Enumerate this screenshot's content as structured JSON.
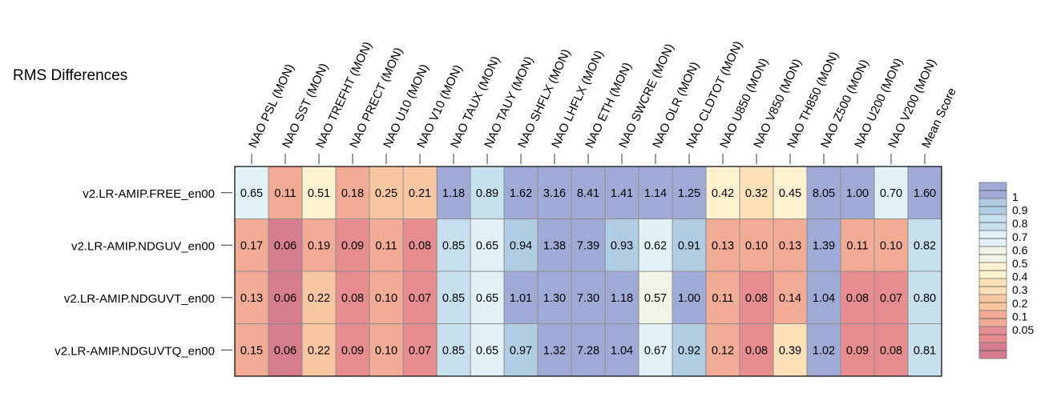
{
  "chart_data": {
    "type": "heatmap",
    "title": "RMS Differences",
    "columns": [
      "NAO PSL (MON)",
      "NAO SST (MON)",
      "NAO TREFHT (MON)",
      "NAO PRECT (MON)",
      "NAO U10 (MON)",
      "NAO V10 (MON)",
      "NAO TAUX (MON)",
      "NAO TAUY (MON)",
      "NAO SHFLX (MON)",
      "NAO LHFLX (MON)",
      "NAO ETH (MON)",
      "NAO SWCRE (MON)",
      "NAO OLR (MON)",
      "NAO CLDTOT (MON)",
      "NAO U850 (MON)",
      "NAO V850 (MON)",
      "NAO TH850 (MON)",
      "NAO Z500 (MON)",
      "NAO U200 (MON)",
      "NAO V200 (MON)",
      "Mean Score"
    ],
    "rows": [
      {
        "name": "v2.LR-AMIP.FREE_en00",
        "values": [
          "0.65",
          "0.11",
          "0.51",
          "0.18",
          "0.25",
          "0.21",
          "1.18",
          "0.89",
          "1.62",
          "3.16",
          "8.41",
          "1.41",
          "1.14",
          "1.25",
          "0.42",
          "0.32",
          "0.45",
          "8.05",
          "1.00",
          "0.70",
          "1.60"
        ]
      },
      {
        "name": "v2.LR-AMIP.NDGUV_en00",
        "values": [
          "0.17",
          "0.06",
          "0.19",
          "0.09",
          "0.11",
          "0.08",
          "0.85",
          "0.65",
          "0.94",
          "1.38",
          "7.39",
          "0.93",
          "0.62",
          "0.91",
          "0.13",
          "0.10",
          "0.13",
          "1.39",
          "0.11",
          "0.10",
          "0.82"
        ]
      },
      {
        "name": "v2.LR-AMIP.NDGUVT_en00",
        "values": [
          "0.13",
          "0.06",
          "0.22",
          "0.08",
          "0.10",
          "0.07",
          "0.85",
          "0.65",
          "1.01",
          "1.30",
          "7.30",
          "1.18",
          "0.57",
          "1.00",
          "0.11",
          "0.08",
          "0.14",
          "1.04",
          "0.08",
          "0.07",
          "0.80"
        ]
      },
      {
        "name": "v2.LR-AMIP.NDGUVTQ_en00",
        "values": [
          "0.15",
          "0.06",
          "0.22",
          "0.09",
          "0.10",
          "0.07",
          "0.85",
          "0.65",
          "0.97",
          "1.32",
          "7.28",
          "1.04",
          "0.67",
          "0.92",
          "0.12",
          "0.08",
          "0.39",
          "1.02",
          "0.09",
          "0.08",
          "0.81"
        ]
      }
    ],
    "colorbar": {
      "ticks": [
        "1",
        "0.9",
        "0.8",
        "0.7",
        "0.6",
        "0.5",
        "0.4",
        "0.3",
        "0.2",
        "0.1",
        "0.05"
      ],
      "colors": [
        "#9fabd6",
        "#b1cde3",
        "#c6e0ed",
        "#e2f1f5",
        "#f2f2e7",
        "#fdf1d0",
        "#fbe0b8",
        "#f8c7a1",
        "#f2ab94",
        "#e78d8f",
        "#d57c8d"
      ]
    }
  }
}
